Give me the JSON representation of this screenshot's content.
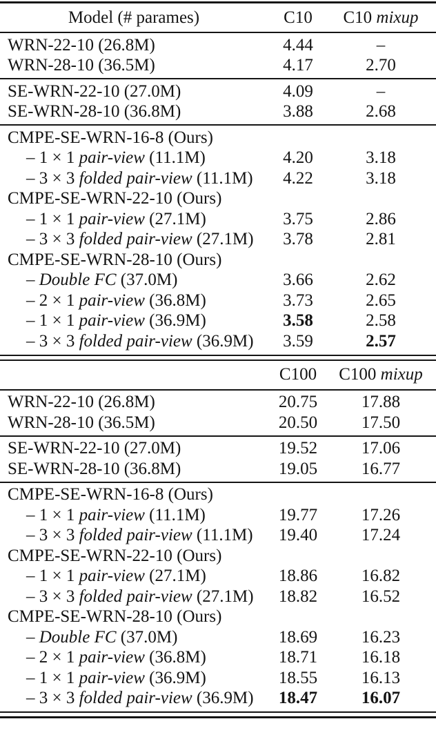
{
  "meta": {
    "kind": "academic-paper-results-table",
    "datasets": [
      "C10",
      "C10 mixup",
      "C100",
      "C100 mixup"
    ],
    "text_color": "#141414",
    "background_color": "#ffffff",
    "bold_semantics": "best (lowest) error rate per column"
  },
  "table": {
    "segments": [
      {
        "kind": "rule",
        "weight": "top"
      },
      {
        "kind": "header",
        "model": [
          {
            "t": "Model (# parames)"
          }
        ],
        "c1": [
          {
            "t": "C10"
          }
        ],
        "c2": [
          {
            "t": "C10 "
          },
          {
            "t": "mixup",
            "i": true
          }
        ]
      },
      {
        "kind": "rule",
        "weight": "mid"
      },
      {
        "kind": "row",
        "model": [
          {
            "t": "WRN-22-10 (26.8M)"
          }
        ],
        "c1": [
          {
            "t": "4.44"
          }
        ],
        "c2": [
          {
            "t": "–"
          }
        ]
      },
      {
        "kind": "row",
        "model": [
          {
            "t": "WRN-28-10 (36.5M)"
          }
        ],
        "c1": [
          {
            "t": "4.17"
          }
        ],
        "c2": [
          {
            "t": "2.70"
          }
        ]
      },
      {
        "kind": "rule",
        "weight": "mid"
      },
      {
        "kind": "row",
        "model": [
          {
            "t": "SE-WRN-22-10 (27.0M)"
          }
        ],
        "c1": [
          {
            "t": "4.09"
          }
        ],
        "c2": [
          {
            "t": "–"
          }
        ]
      },
      {
        "kind": "row",
        "model": [
          {
            "t": "SE-WRN-28-10 (36.8M)"
          }
        ],
        "c1": [
          {
            "t": "3.88"
          }
        ],
        "c2": [
          {
            "t": "2.68"
          }
        ]
      },
      {
        "kind": "rule",
        "weight": "mid"
      },
      {
        "kind": "row",
        "model": [
          {
            "t": "CMPE-SE-WRN-16-8 (Ours)"
          }
        ],
        "c1": [],
        "c2": []
      },
      {
        "kind": "row",
        "indent": true,
        "model": [
          {
            "t": "– 1 × 1 "
          },
          {
            "t": "pair-view",
            "i": true
          },
          {
            "t": " (11.1M)"
          }
        ],
        "c1": [
          {
            "t": "4.20"
          }
        ],
        "c2": [
          {
            "t": "3.18"
          }
        ]
      },
      {
        "kind": "row",
        "indent": true,
        "model": [
          {
            "t": "– 3 × 3 "
          },
          {
            "t": "folded pair-view",
            "i": true
          },
          {
            "t": " (11.1M)"
          }
        ],
        "c1": [
          {
            "t": "4.22"
          }
        ],
        "c2": [
          {
            "t": "3.18"
          }
        ]
      },
      {
        "kind": "row",
        "model": [
          {
            "t": "CMPE-SE-WRN-22-10 (Ours)"
          }
        ],
        "c1": [],
        "c2": []
      },
      {
        "kind": "row",
        "indent": true,
        "model": [
          {
            "t": "– 1 × 1 "
          },
          {
            "t": "pair-view",
            "i": true
          },
          {
            "t": " (27.1M)"
          }
        ],
        "c1": [
          {
            "t": "3.75"
          }
        ],
        "c2": [
          {
            "t": "2.86"
          }
        ]
      },
      {
        "kind": "row",
        "indent": true,
        "model": [
          {
            "t": "– 3 × 3 "
          },
          {
            "t": "folded pair-view",
            "i": true
          },
          {
            "t": " (27.1M)"
          }
        ],
        "c1": [
          {
            "t": "3.78"
          }
        ],
        "c2": [
          {
            "t": "2.81"
          }
        ]
      },
      {
        "kind": "row",
        "model": [
          {
            "t": "CMPE-SE-WRN-28-10 (Ours)"
          }
        ],
        "c1": [],
        "c2": []
      },
      {
        "kind": "row",
        "indent": true,
        "model": [
          {
            "t": "– "
          },
          {
            "t": "Double FC",
            "i": true
          },
          {
            "t": " (37.0M)"
          }
        ],
        "c1": [
          {
            "t": "3.66"
          }
        ],
        "c2": [
          {
            "t": "2.62"
          }
        ]
      },
      {
        "kind": "row",
        "indent": true,
        "model": [
          {
            "t": "– 2 × 1 "
          },
          {
            "t": "pair-view",
            "i": true
          },
          {
            "t": " (36.8M)"
          }
        ],
        "c1": [
          {
            "t": "3.73"
          }
        ],
        "c2": [
          {
            "t": "2.65"
          }
        ]
      },
      {
        "kind": "row",
        "indent": true,
        "model": [
          {
            "t": "– 1 × 1 "
          },
          {
            "t": "pair-view",
            "i": true
          },
          {
            "t": " (36.9M)"
          }
        ],
        "c1": [
          {
            "t": "3.58",
            "b": true
          }
        ],
        "c2": [
          {
            "t": "2.58"
          }
        ]
      },
      {
        "kind": "row",
        "indent": true,
        "model": [
          {
            "t": "– 3 × 3 "
          },
          {
            "t": "folded pair-view",
            "i": true
          },
          {
            "t": " (36.9M)"
          }
        ],
        "c1": [
          {
            "t": "3.59"
          }
        ],
        "c2": [
          {
            "t": "2.57",
            "b": true
          }
        ]
      },
      {
        "kind": "rule",
        "weight": "dbl"
      },
      {
        "kind": "header",
        "model": [],
        "c1": [
          {
            "t": "C100"
          }
        ],
        "c2": [
          {
            "t": "C100 "
          },
          {
            "t": "mixup",
            "i": true
          }
        ]
      },
      {
        "kind": "rule",
        "weight": "mid"
      },
      {
        "kind": "row",
        "model": [
          {
            "t": "WRN-22-10 (26.8M)"
          }
        ],
        "c1": [
          {
            "t": "20.75"
          }
        ],
        "c2": [
          {
            "t": "17.88"
          }
        ]
      },
      {
        "kind": "row",
        "model": [
          {
            "t": "WRN-28-10 (36.5M)"
          }
        ],
        "c1": [
          {
            "t": "20.50"
          }
        ],
        "c2": [
          {
            "t": "17.50"
          }
        ]
      },
      {
        "kind": "rule",
        "weight": "mid"
      },
      {
        "kind": "row",
        "model": [
          {
            "t": "SE-WRN-22-10 (27.0M)"
          }
        ],
        "c1": [
          {
            "t": "19.52"
          }
        ],
        "c2": [
          {
            "t": "17.06"
          }
        ]
      },
      {
        "kind": "row",
        "model": [
          {
            "t": "SE-WRN-28-10 (36.8M)"
          }
        ],
        "c1": [
          {
            "t": "19.05"
          }
        ],
        "c2": [
          {
            "t": "16.77"
          }
        ]
      },
      {
        "kind": "rule",
        "weight": "mid"
      },
      {
        "kind": "row",
        "model": [
          {
            "t": "CMPE-SE-WRN-16-8 (Ours)"
          }
        ],
        "c1": [],
        "c2": []
      },
      {
        "kind": "row",
        "indent": true,
        "model": [
          {
            "t": "– 1 × 1 "
          },
          {
            "t": "pair-view",
            "i": true
          },
          {
            "t": " (11.1M)"
          }
        ],
        "c1": [
          {
            "t": "19.77"
          }
        ],
        "c2": [
          {
            "t": "17.26"
          }
        ]
      },
      {
        "kind": "row",
        "indent": true,
        "model": [
          {
            "t": "– 3 × 3 "
          },
          {
            "t": "folded pair-view",
            "i": true
          },
          {
            "t": " (11.1M)"
          }
        ],
        "c1": [
          {
            "t": "19.40"
          }
        ],
        "c2": [
          {
            "t": "17.24"
          }
        ]
      },
      {
        "kind": "row",
        "model": [
          {
            "t": "CMPE-SE-WRN-22-10 (Ours)"
          }
        ],
        "c1": [],
        "c2": []
      },
      {
        "kind": "row",
        "indent": true,
        "model": [
          {
            "t": "– 1 × 1 "
          },
          {
            "t": "pair-view",
            "i": true
          },
          {
            "t": " (27.1M)"
          }
        ],
        "c1": [
          {
            "t": "18.86"
          }
        ],
        "c2": [
          {
            "t": "16.82"
          }
        ]
      },
      {
        "kind": "row",
        "indent": true,
        "model": [
          {
            "t": "– 3 × 3 "
          },
          {
            "t": "folded pair-view",
            "i": true
          },
          {
            "t": " (27.1M)"
          }
        ],
        "c1": [
          {
            "t": "18.82"
          }
        ],
        "c2": [
          {
            "t": "16.52"
          }
        ]
      },
      {
        "kind": "row",
        "model": [
          {
            "t": "CMPE-SE-WRN-28-10 (Ours)"
          }
        ],
        "c1": [],
        "c2": []
      },
      {
        "kind": "row",
        "indent": true,
        "model": [
          {
            "t": "– "
          },
          {
            "t": "Double FC",
            "i": true
          },
          {
            "t": " (37.0M)"
          }
        ],
        "c1": [
          {
            "t": "18.69"
          }
        ],
        "c2": [
          {
            "t": "16.23"
          }
        ]
      },
      {
        "kind": "row",
        "indent": true,
        "model": [
          {
            "t": "– 2 × 1 "
          },
          {
            "t": "pair-view",
            "i": true
          },
          {
            "t": " (36.8M)"
          }
        ],
        "c1": [
          {
            "t": "18.71"
          }
        ],
        "c2": [
          {
            "t": "16.18"
          }
        ]
      },
      {
        "kind": "row",
        "indent": true,
        "model": [
          {
            "t": "– 1 × 1 "
          },
          {
            "t": "pair-view",
            "i": true
          },
          {
            "t": " (36.9M)"
          }
        ],
        "c1": [
          {
            "t": "18.55"
          }
        ],
        "c2": [
          {
            "t": "16.13"
          }
        ]
      },
      {
        "kind": "row",
        "indent": true,
        "model": [
          {
            "t": "– 3 × 3 "
          },
          {
            "t": "folded pair-view",
            "i": true
          },
          {
            "t": " (36.9M)"
          }
        ],
        "c1": [
          {
            "t": "18.47",
            "b": true
          }
        ],
        "c2": [
          {
            "t": "16.07",
            "b": true
          }
        ]
      },
      {
        "kind": "rule",
        "weight": "bottom"
      }
    ]
  }
}
